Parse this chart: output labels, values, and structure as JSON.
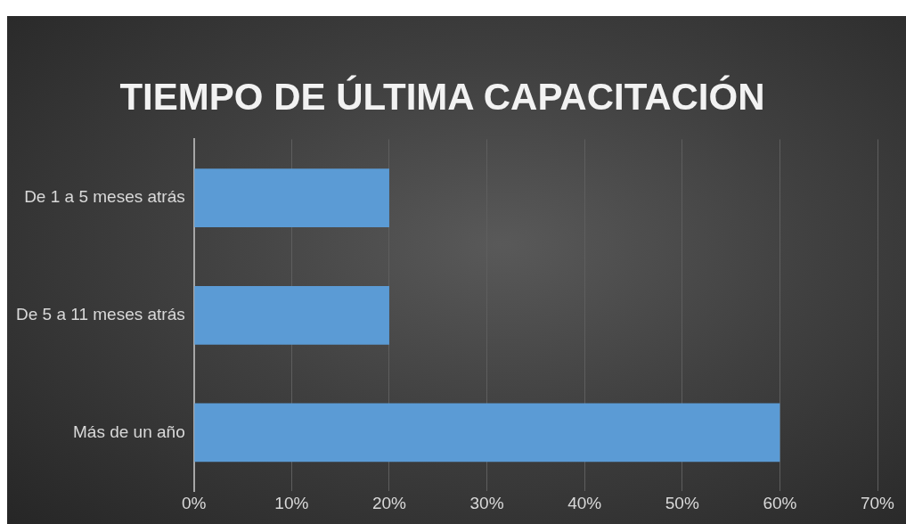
{
  "chart_data": {
    "type": "bar",
    "orientation": "horizontal",
    "title": "TIEMPO DE ÚLTIMA CAPACITACIÓN",
    "categories": [
      "De 1 a 5 meses atrás",
      "De 5 a 11 meses atrás",
      "Más de un año"
    ],
    "values": [
      20,
      20,
      60
    ],
    "color": "#5b9bd5",
    "xlim": [
      0,
      70
    ],
    "xticks": [
      {
        "value": 0,
        "label": "0%"
      },
      {
        "value": 10,
        "label": "10%"
      },
      {
        "value": 20,
        "label": "20%"
      },
      {
        "value": 30,
        "label": "30%"
      },
      {
        "value": 40,
        "label": "40%"
      },
      {
        "value": 50,
        "label": "50%"
      },
      {
        "value": 60,
        "label": "60%"
      },
      {
        "value": 70,
        "label": "70%"
      }
    ],
    "grid": "x"
  }
}
